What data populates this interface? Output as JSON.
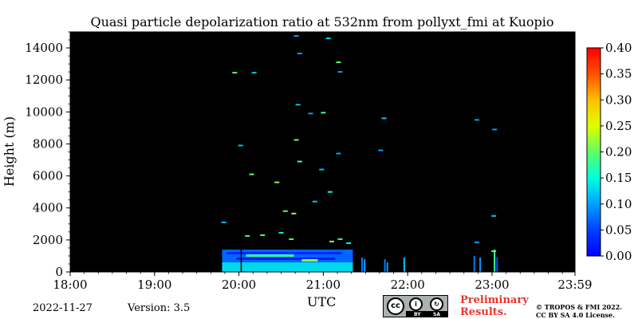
{
  "chart_data": {
    "type": "heatmap",
    "title": "Quasi particle depolarization ratio at 532nm from pollyxt_fmi at Kuopio",
    "xlabel": "UTC",
    "ylabel": "Height (m)",
    "x_ticks": [
      "18:00",
      "19:00",
      "20:00",
      "21:00",
      "22:00",
      "23:00",
      "23:59"
    ],
    "x_range_hours": [
      18.0,
      23.983
    ],
    "y_ticks": [
      0,
      2000,
      4000,
      6000,
      8000,
      10000,
      12000,
      14000
    ],
    "ylim": [
      0,
      15000
    ],
    "colorbar": {
      "range": [
        0.0,
        0.4
      ],
      "ticks": [
        "0.00",
        "0.05",
        "0.10",
        "0.15",
        "0.20",
        "0.25",
        "0.30",
        "0.35",
        "0.40"
      ],
      "colormap": "jet",
      "background_color": "#000000"
    },
    "low_layer": {
      "x_range_hours": [
        19.8,
        21.35
      ],
      "height_range_m": [
        0,
        1400
      ],
      "typical_value": 0.07
    },
    "detections": [
      {
        "t": 19.95,
        "h": 12450,
        "v": 0.2
      },
      {
        "t": 20.18,
        "h": 12450,
        "v": 0.12
      },
      {
        "t": 20.68,
        "h": 14750,
        "v": 0.1
      },
      {
        "t": 21.06,
        "h": 14600,
        "v": 0.12
      },
      {
        "t": 20.72,
        "h": 13650,
        "v": 0.1
      },
      {
        "t": 21.18,
        "h": 13100,
        "v": 0.2
      },
      {
        "t": 21.2,
        "h": 12500,
        "v": 0.1
      },
      {
        "t": 20.7,
        "h": 10450,
        "v": 0.12
      },
      {
        "t": 20.85,
        "h": 9900,
        "v": 0.1
      },
      {
        "t": 21.0,
        "h": 9950,
        "v": 0.18
      },
      {
        "t": 21.72,
        "h": 9600,
        "v": 0.12
      },
      {
        "t": 22.82,
        "h": 9500,
        "v": 0.1
      },
      {
        "t": 23.03,
        "h": 8900,
        "v": 0.1
      },
      {
        "t": 20.02,
        "h": 7900,
        "v": 0.12
      },
      {
        "t": 20.68,
        "h": 8250,
        "v": 0.2
      },
      {
        "t": 20.72,
        "h": 6900,
        "v": 0.18
      },
      {
        "t": 21.18,
        "h": 7400,
        "v": 0.1
      },
      {
        "t": 21.68,
        "h": 7600,
        "v": 0.1
      },
      {
        "t": 20.15,
        "h": 6100,
        "v": 0.2
      },
      {
        "t": 20.45,
        "h": 5600,
        "v": 0.22
      },
      {
        "t": 20.98,
        "h": 6400,
        "v": 0.12
      },
      {
        "t": 21.08,
        "h": 5000,
        "v": 0.15
      },
      {
        "t": 20.55,
        "h": 3800,
        "v": 0.2
      },
      {
        "t": 20.65,
        "h": 3650,
        "v": 0.22
      },
      {
        "t": 20.9,
        "h": 4400,
        "v": 0.12
      },
      {
        "t": 23.02,
        "h": 3500,
        "v": 0.12
      },
      {
        "t": 19.82,
        "h": 3100,
        "v": 0.12
      },
      {
        "t": 20.1,
        "h": 2250,
        "v": 0.18
      },
      {
        "t": 20.28,
        "h": 2300,
        "v": 0.2
      },
      {
        "t": 20.5,
        "h": 2450,
        "v": 0.15
      },
      {
        "t": 20.62,
        "h": 2050,
        "v": 0.2
      },
      {
        "t": 21.1,
        "h": 1900,
        "v": 0.22
      },
      {
        "t": 21.2,
        "h": 2050,
        "v": 0.18
      },
      {
        "t": 21.3,
        "h": 1800,
        "v": 0.15
      },
      {
        "t": 22.82,
        "h": 1850,
        "v": 0.1
      },
      {
        "t": 23.02,
        "h": 1300,
        "v": 0.2
      }
    ],
    "columns": [
      {
        "t": 21.45,
        "h_top": 900,
        "v": 0.08
      },
      {
        "t": 21.48,
        "h_top": 800,
        "v": 0.1
      },
      {
        "t": 21.72,
        "h_top": 800,
        "v": 0.08
      },
      {
        "t": 21.75,
        "h_top": 600,
        "v": 0.1
      },
      {
        "t": 21.95,
        "h_top": 900,
        "v": 0.12
      },
      {
        "t": 22.85,
        "h_top": 900,
        "v": 0.1
      },
      {
        "t": 22.78,
        "h_top": 1000,
        "v": 0.08
      },
      {
        "t": 23.02,
        "h_top": 1400,
        "v": 0.18
      },
      {
        "t": 23.05,
        "h_top": 900,
        "v": 0.06
      }
    ]
  },
  "footer": {
    "date": "2022-11-27",
    "version": "Version: 3.5",
    "preliminary_line1": "Preliminary",
    "preliminary_line2": "Results.",
    "license_line1": "© TROPOS & FMI 2022.",
    "license_line2": "CC BY SA 4.0 License.",
    "cc_main": "cc",
    "cc_by": "BY",
    "cc_sa": "SA"
  }
}
